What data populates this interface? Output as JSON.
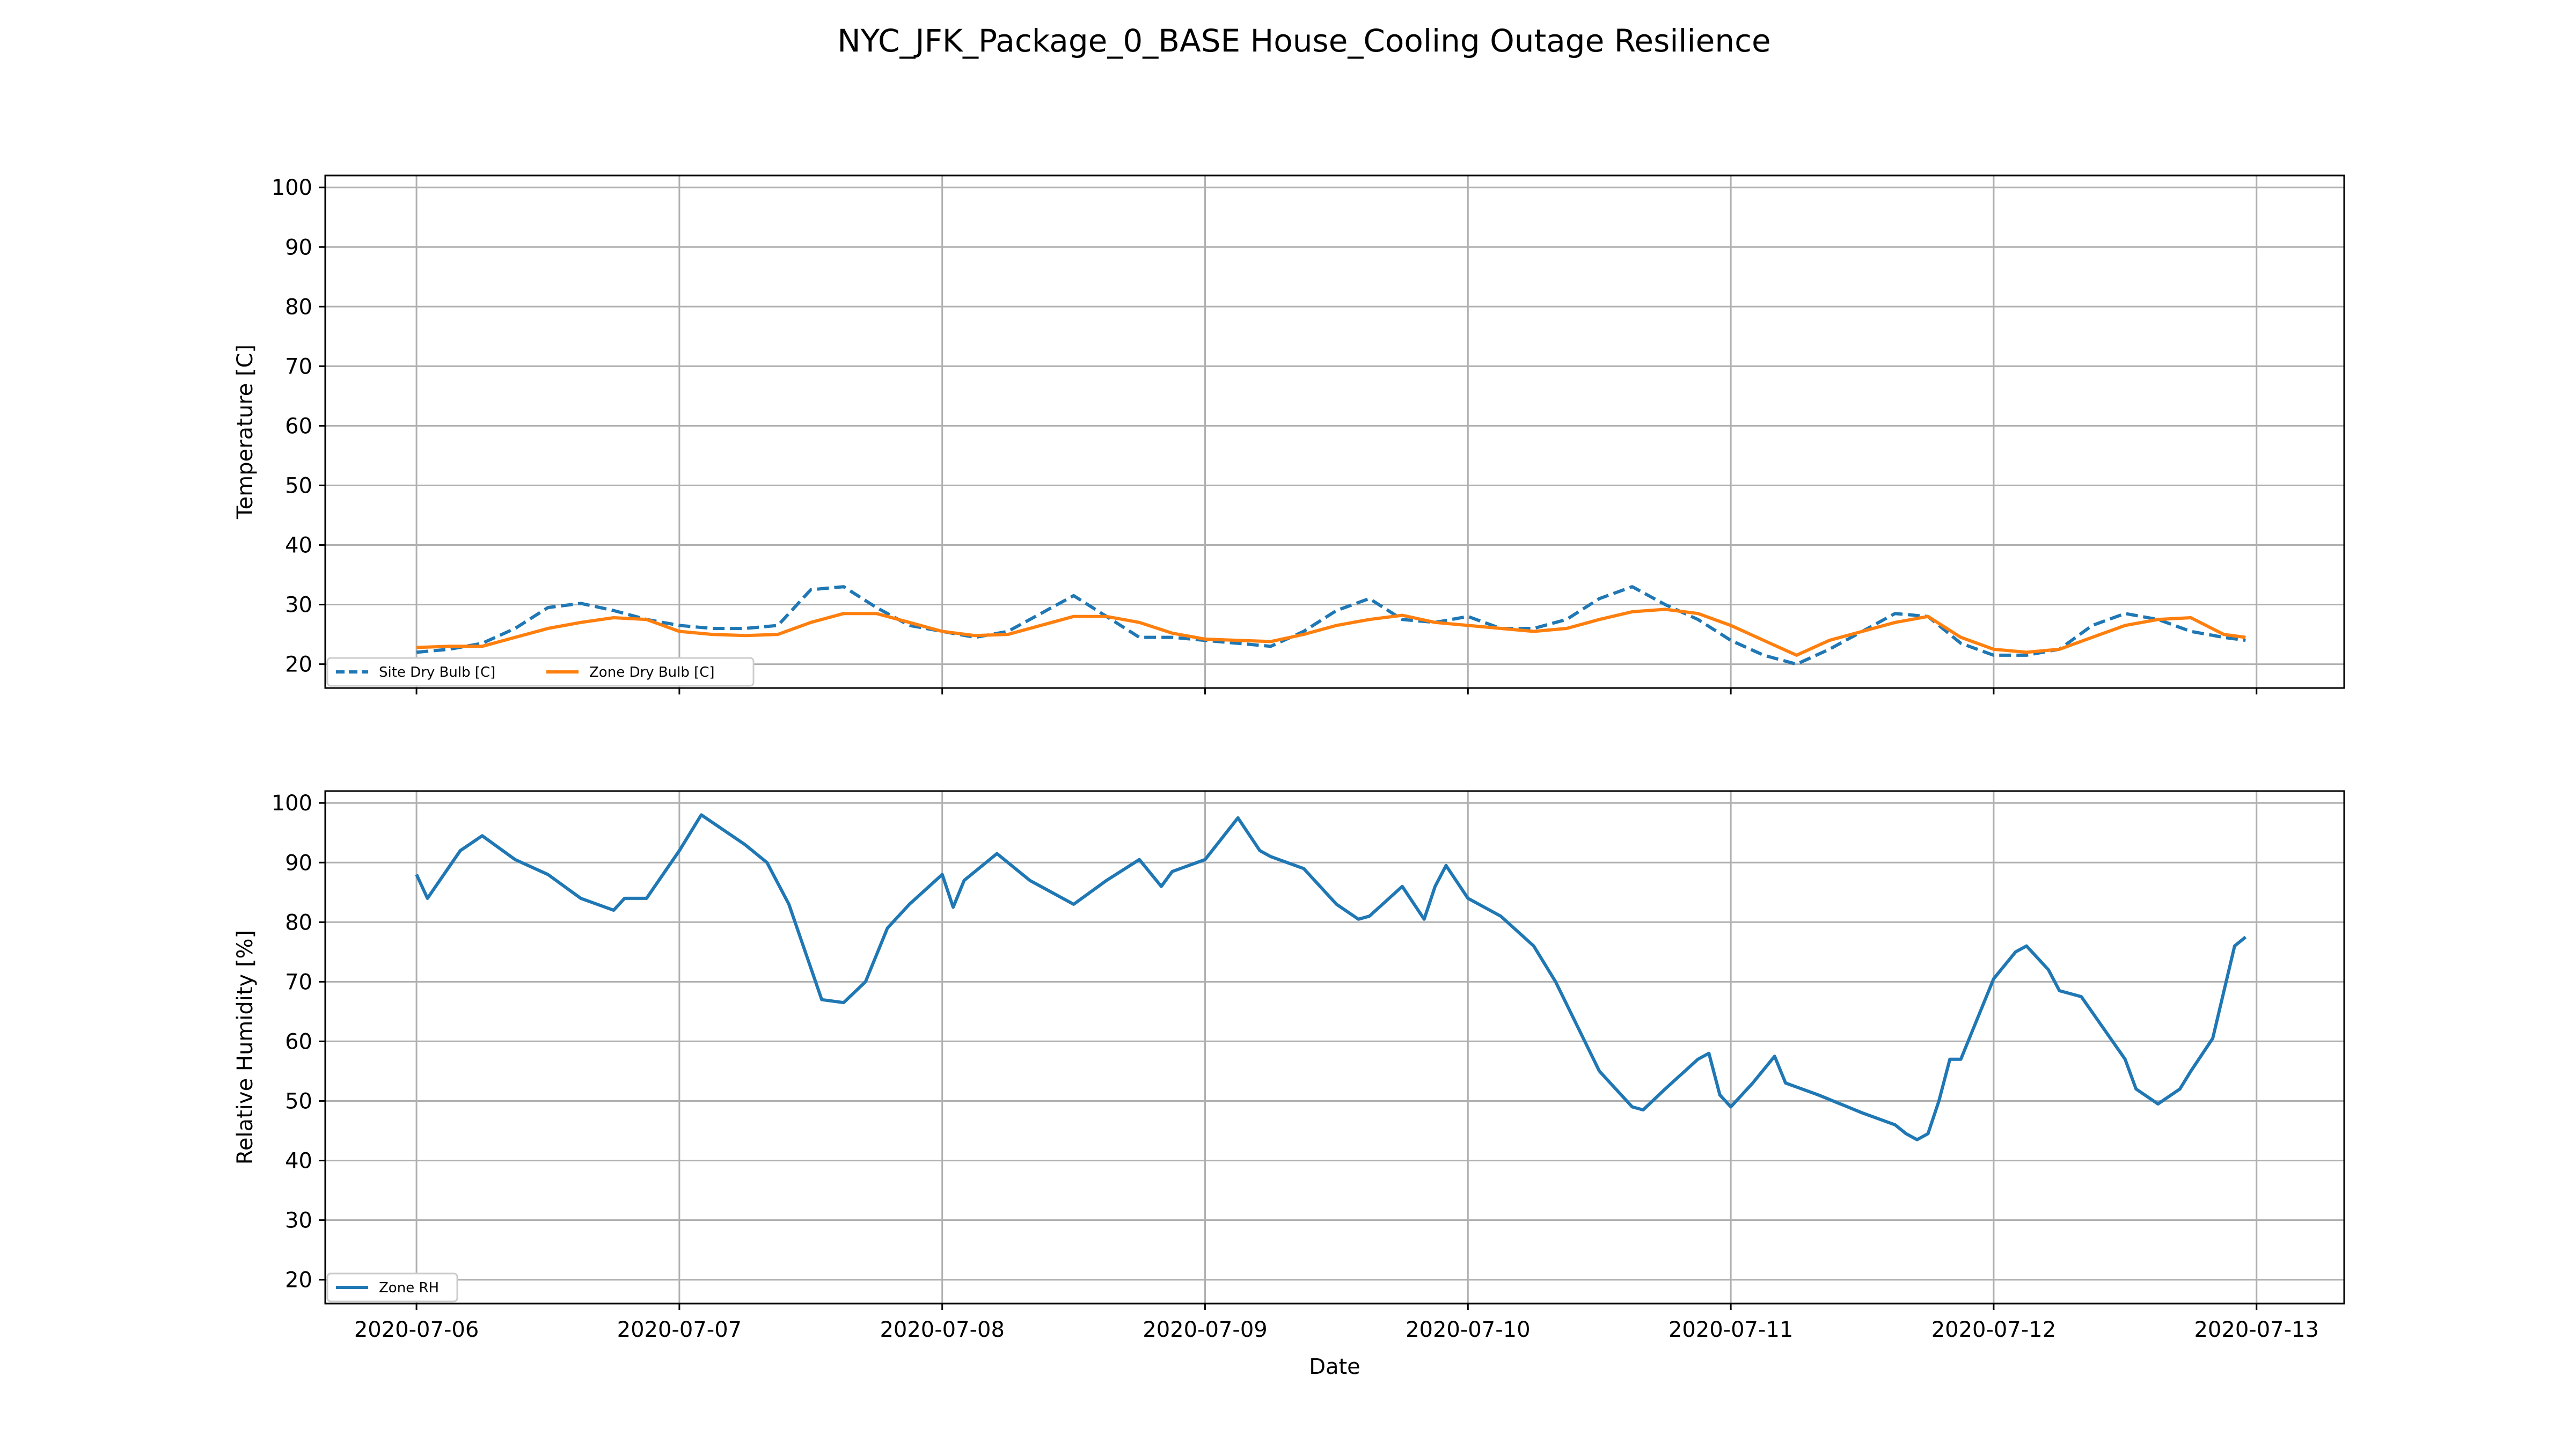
{
  "chart_data": {
    "title": "NYC_JFK_Package_0_BASE House_Cooling Outage Resilience",
    "xlabel": "Date",
    "x_ticks": [
      "2020-07-06",
      "2020-07-07",
      "2020-07-08",
      "2020-07-09",
      "2020-07-10",
      "2020-07-11",
      "2020-07-12",
      "2020-07-13"
    ],
    "x_range": [
      "2020-07-05 15:40",
      "2020-07-13 08:00"
    ],
    "grid": true,
    "panels": [
      {
        "type": "line",
        "ylabel": "Temperature [C]",
        "ylim": [
          16,
          102
        ],
        "yticks": [
          20,
          30,
          40,
          50,
          60,
          70,
          80,
          90,
          100
        ],
        "legend_position": "lower-left",
        "series": [
          {
            "name": "Site Dry Bulb [C]",
            "color": "#1f77b4",
            "style": "dashed",
            "x": [
              "2020-07-06 00:00",
              "2020-07-06 03:00",
              "2020-07-06 06:00",
              "2020-07-06 09:00",
              "2020-07-06 12:00",
              "2020-07-06 15:00",
              "2020-07-06 18:00",
              "2020-07-06 21:00",
              "2020-07-07 00:00",
              "2020-07-07 03:00",
              "2020-07-07 06:00",
              "2020-07-07 09:00",
              "2020-07-07 12:00",
              "2020-07-07 15:00",
              "2020-07-07 18:00",
              "2020-07-07 21:00",
              "2020-07-08 00:00",
              "2020-07-08 03:00",
              "2020-07-08 06:00",
              "2020-07-08 09:00",
              "2020-07-08 12:00",
              "2020-07-08 15:00",
              "2020-07-08 18:00",
              "2020-07-08 21:00",
              "2020-07-09 00:00",
              "2020-07-09 03:00",
              "2020-07-09 06:00",
              "2020-07-09 09:00",
              "2020-07-09 12:00",
              "2020-07-09 15:00",
              "2020-07-09 18:00",
              "2020-07-09 21:00",
              "2020-07-10 00:00",
              "2020-07-10 03:00",
              "2020-07-10 06:00",
              "2020-07-10 09:00",
              "2020-07-10 12:00",
              "2020-07-10 15:00",
              "2020-07-10 18:00",
              "2020-07-10 21:00",
              "2020-07-11 00:00",
              "2020-07-11 03:00",
              "2020-07-11 06:00",
              "2020-07-11 09:00",
              "2020-07-11 12:00",
              "2020-07-11 15:00",
              "2020-07-11 18:00",
              "2020-07-11 21:00",
              "2020-07-12 00:00",
              "2020-07-12 03:00",
              "2020-07-12 06:00",
              "2020-07-12 09:00",
              "2020-07-12 12:00",
              "2020-07-12 15:00",
              "2020-07-12 18:00",
              "2020-07-12 21:00",
              "2020-07-12 23:00"
            ],
            "y": [
              22.0,
              22.5,
              23.5,
              26.0,
              29.5,
              30.2,
              29.0,
              27.5,
              26.5,
              26.0,
              26.0,
              26.5,
              32.5,
              33.0,
              29.5,
              26.5,
              25.5,
              24.5,
              25.5,
              28.5,
              31.5,
              28.0,
              24.5,
              24.5,
              24.0,
              23.5,
              23.0,
              25.5,
              29.0,
              31.0,
              27.5,
              27.0,
              28.0,
              26.0,
              26.0,
              27.5,
              31.0,
              33.0,
              30.0,
              27.5,
              24.0,
              21.5,
              20.0,
              22.5,
              25.5,
              28.5,
              28.0,
              23.5,
              21.5,
              21.5,
              22.5,
              26.5,
              28.5,
              27.5,
              25.5,
              24.5,
              24.0
            ]
          },
          {
            "name": "Zone Dry Bulb [C]",
            "color": "#ff7f0e",
            "style": "solid",
            "x": [
              "2020-07-06 00:00",
              "2020-07-06 03:00",
              "2020-07-06 06:00",
              "2020-07-06 09:00",
              "2020-07-06 12:00",
              "2020-07-06 15:00",
              "2020-07-06 18:00",
              "2020-07-06 21:00",
              "2020-07-07 00:00",
              "2020-07-07 03:00",
              "2020-07-07 06:00",
              "2020-07-07 09:00",
              "2020-07-07 12:00",
              "2020-07-07 15:00",
              "2020-07-07 18:00",
              "2020-07-07 21:00",
              "2020-07-08 00:00",
              "2020-07-08 03:00",
              "2020-07-08 06:00",
              "2020-07-08 09:00",
              "2020-07-08 12:00",
              "2020-07-08 15:00",
              "2020-07-08 18:00",
              "2020-07-08 21:00",
              "2020-07-09 00:00",
              "2020-07-09 03:00",
              "2020-07-09 06:00",
              "2020-07-09 09:00",
              "2020-07-09 12:00",
              "2020-07-09 15:00",
              "2020-07-09 18:00",
              "2020-07-09 21:00",
              "2020-07-10 00:00",
              "2020-07-10 03:00",
              "2020-07-10 06:00",
              "2020-07-10 09:00",
              "2020-07-10 12:00",
              "2020-07-10 15:00",
              "2020-07-10 18:00",
              "2020-07-10 21:00",
              "2020-07-11 00:00",
              "2020-07-11 03:00",
              "2020-07-11 06:00",
              "2020-07-11 09:00",
              "2020-07-11 12:00",
              "2020-07-11 15:00",
              "2020-07-11 18:00",
              "2020-07-11 21:00",
              "2020-07-12 00:00",
              "2020-07-12 03:00",
              "2020-07-12 06:00",
              "2020-07-12 09:00",
              "2020-07-12 12:00",
              "2020-07-12 15:00",
              "2020-07-12 18:00",
              "2020-07-12 21:00",
              "2020-07-12 23:00"
            ],
            "y": [
              22.8,
              23.0,
              23.0,
              24.5,
              26.0,
              27.0,
              27.8,
              27.5,
              25.5,
              25.0,
              24.8,
              25.0,
              27.0,
              28.5,
              28.5,
              27.0,
              25.5,
              24.8,
              25.0,
              26.5,
              28.0,
              28.0,
              27.0,
              25.2,
              24.2,
              24.0,
              23.8,
              25.0,
              26.5,
              27.5,
              28.2,
              27.0,
              26.5,
              26.0,
              25.5,
              26.0,
              27.5,
              28.8,
              29.2,
              28.5,
              26.5,
              24.0,
              21.5,
              24.0,
              25.5,
              27.0,
              28.0,
              24.5,
              22.5,
              22.0,
              22.5,
              24.5,
              26.5,
              27.5,
              27.8,
              25.0,
              24.5
            ]
          }
        ]
      },
      {
        "type": "line",
        "ylabel": "Relative Humidity [%]",
        "ylim": [
          16,
          102
        ],
        "yticks": [
          20,
          30,
          40,
          50,
          60,
          70,
          80,
          90,
          100
        ],
        "legend_position": "lower-left",
        "series": [
          {
            "name": "Zone RH",
            "color": "#1f77b4",
            "style": "solid",
            "x": [
              "2020-07-06 00:00",
              "2020-07-06 01:00",
              "2020-07-06 04:00",
              "2020-07-06 06:00",
              "2020-07-06 09:00",
              "2020-07-06 12:00",
              "2020-07-06 15:00",
              "2020-07-06 18:00",
              "2020-07-06 19:00",
              "2020-07-06 21:00",
              "2020-07-07 00:00",
              "2020-07-07 02:00",
              "2020-07-07 06:00",
              "2020-07-07 08:00",
              "2020-07-07 10:00",
              "2020-07-07 13:00",
              "2020-07-07 15:00",
              "2020-07-07 17:00",
              "2020-07-07 19:00",
              "2020-07-07 21:00",
              "2020-07-08 00:00",
              "2020-07-08 01:00",
              "2020-07-08 02:00",
              "2020-07-08 05:00",
              "2020-07-08 08:00",
              "2020-07-08 12:00",
              "2020-07-08 15:00",
              "2020-07-08 18:00",
              "2020-07-08 20:00",
              "2020-07-08 21:00",
              "2020-07-09 00:00",
              "2020-07-09 03:00",
              "2020-07-09 05:00",
              "2020-07-09 06:00",
              "2020-07-09 09:00",
              "2020-07-09 12:00",
              "2020-07-09 14:00",
              "2020-07-09 15:00",
              "2020-07-09 18:00",
              "2020-07-09 20:00",
              "2020-07-09 21:00",
              "2020-07-09 22:00",
              "2020-07-10 00:00",
              "2020-07-10 03:00",
              "2020-07-10 06:00",
              "2020-07-10 08:00",
              "2020-07-10 12:00",
              "2020-07-10 15:00",
              "2020-07-10 16:00",
              "2020-07-10 18:00",
              "2020-07-10 21:00",
              "2020-07-10 22:00",
              "2020-07-10 23:00",
              "2020-07-11 00:00",
              "2020-07-11 02:00",
              "2020-07-11 04:00",
              "2020-07-11 05:00",
              "2020-07-11 08:00",
              "2020-07-11 12:00",
              "2020-07-11 15:00",
              "2020-07-11 16:00",
              "2020-07-11 17:00",
              "2020-07-11 18:00",
              "2020-07-11 19:00",
              "2020-07-11 20:00",
              "2020-07-11 21:00",
              "2020-07-12 00:00",
              "2020-07-12 02:00",
              "2020-07-12 03:00",
              "2020-07-12 05:00",
              "2020-07-12 06:00",
              "2020-07-12 08:00",
              "2020-07-12 12:00",
              "2020-07-12 13:00",
              "2020-07-12 15:00",
              "2020-07-12 17:00",
              "2020-07-12 18:00",
              "2020-07-12 20:00",
              "2020-07-12 22:00",
              "2020-07-12 23:00"
            ],
            "y": [
              88,
              84,
              92,
              94.5,
              90.5,
              88,
              84,
              82,
              84,
              84,
              92,
              98,
              93,
              90,
              83,
              67,
              66.5,
              70,
              79,
              83,
              88,
              82.5,
              87,
              91.5,
              87,
              83,
              87,
              90.5,
              86,
              88.5,
              90.5,
              97.5,
              92,
              91,
              89,
              83,
              80.5,
              81,
              86,
              80.5,
              86,
              89.5,
              84,
              81,
              76,
              70,
              55,
              49,
              48.5,
              52,
              57,
              58,
              51,
              49,
              53,
              57.5,
              53,
              51,
              48,
              46,
              44.5,
              43.5,
              44.5,
              50,
              57,
              57,
              70.5,
              75,
              76,
              72,
              68.5,
              67.5,
              57,
              52,
              49.5,
              52,
              55,
              60.5,
              76,
              77.5
            ]
          }
        ]
      }
    ]
  }
}
